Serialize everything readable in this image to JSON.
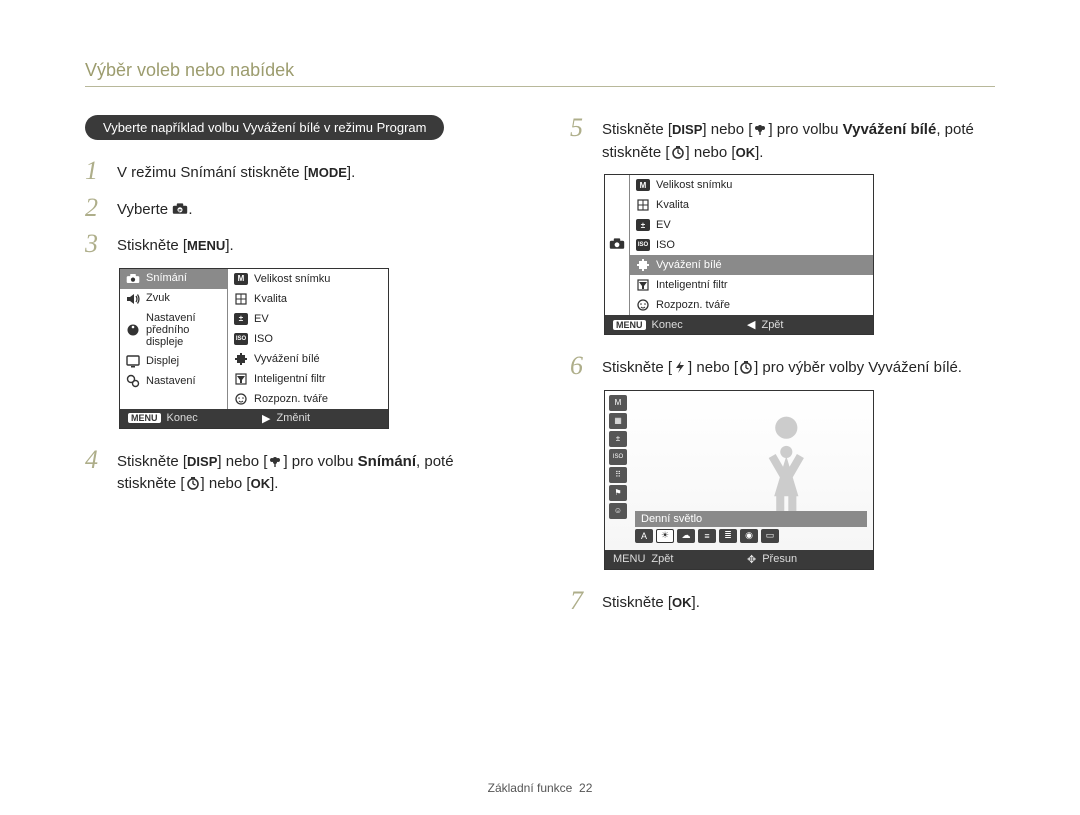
{
  "header": {
    "title": "Výběr voleb nebo nabídek"
  },
  "banner": {
    "text": "Vyberte například volbu Vyvážení bílé v režimu Program"
  },
  "steps": {
    "s1": {
      "num": "1",
      "pre": "V režimu Snímání stiskněte [",
      "btn": "MODE",
      "post": "]."
    },
    "s2": {
      "num": "2",
      "pre": "Vyberte ",
      "icon_name": "camera-p-icon",
      "post": "."
    },
    "s3": {
      "num": "3",
      "pre": "Stiskněte [",
      "btn": "MENU",
      "post": "]."
    },
    "s4": {
      "num": "4",
      "pre": "Stiskněte [",
      "btn1": "DISP",
      "mid1": "] nebo [",
      "icon1": "flower-icon",
      "mid2": "] pro volbu ",
      "bold": "Snímání",
      "mid3": ", poté stiskněte [",
      "icon2": "timer-icon",
      "mid4": "] nebo [",
      "btn2": "OK",
      "post": "]."
    },
    "s5": {
      "num": "5",
      "pre": "Stiskněte [",
      "btn1": "DISP",
      "mid1": "] nebo [",
      "icon1": "flower-icon",
      "mid2": "] pro volbu ",
      "bold": "Vyvážení bílé",
      "mid3": ", poté stiskněte [",
      "icon2": "timer-icon",
      "mid4": "] nebo [",
      "btn2": "OK",
      "post": "]."
    },
    "s6": {
      "num": "6",
      "pre": "Stiskněte [",
      "icon1": "flash-icon",
      "mid1": "] nebo [",
      "icon2": "timer-icon",
      "mid2": "] pro výběr volby Vyvážení bílé."
    },
    "s7": {
      "num": "7",
      "pre": "Stiskněte [",
      "btn": "OK",
      "post": "]."
    }
  },
  "menu3": {
    "left": [
      {
        "icon": "cam",
        "label": "Snímání",
        "hl": true
      },
      {
        "icon": "speaker",
        "label": "Zvuk"
      },
      {
        "icon": "knob",
        "label": "Nastavení předního displeje"
      },
      {
        "icon": "screen",
        "label": "Displej"
      },
      {
        "icon": "gears",
        "label": "Nastavení"
      }
    ],
    "right": [
      {
        "icon": "M",
        "label": "Velikost snímku"
      },
      {
        "icon": "grid",
        "label": "Kvalita"
      },
      {
        "icon": "ev",
        "label": "EV"
      },
      {
        "icon": "iso",
        "label": "ISO"
      },
      {
        "icon": "wb",
        "label": "Vyvážení bílé"
      },
      {
        "icon": "filter",
        "label": "Inteligentní filtr"
      },
      {
        "icon": "face",
        "label": "Rozpozn. tváře"
      }
    ],
    "footer": {
      "left_icon": "MENU",
      "left": "Konec",
      "right_icon": "▶",
      "right": "Změnit"
    }
  },
  "menu5": {
    "items": [
      {
        "icon": "M",
        "label": "Velikost snímku"
      },
      {
        "icon": "grid",
        "label": "Kvalita"
      },
      {
        "icon": "ev",
        "label": "EV"
      },
      {
        "icon": "iso",
        "label": "ISO"
      },
      {
        "icon": "wb",
        "label": "Vyvážení bílé",
        "hl": true
      },
      {
        "icon": "filter",
        "label": "Inteligentní filtr"
      },
      {
        "icon": "face",
        "label": "Rozpozn. tváře"
      }
    ],
    "footer": {
      "left_icon": "MENU",
      "left": "Konec",
      "right_icon": "◀",
      "right": "Zpět"
    }
  },
  "wb6": {
    "bar_label": "Denní světlo",
    "footer": {
      "left_icon": "MENU",
      "left": "Zpět",
      "right_icon": "✥",
      "right": "Přesun"
    }
  },
  "pagefoot": {
    "label": "Základní funkce",
    "num": "22"
  },
  "colors": {
    "accent": "#9c9c6e",
    "stepnum": "#aeae8a",
    "banner_bg": "#3a3a3a",
    "highlight": "#8a8a8a"
  }
}
